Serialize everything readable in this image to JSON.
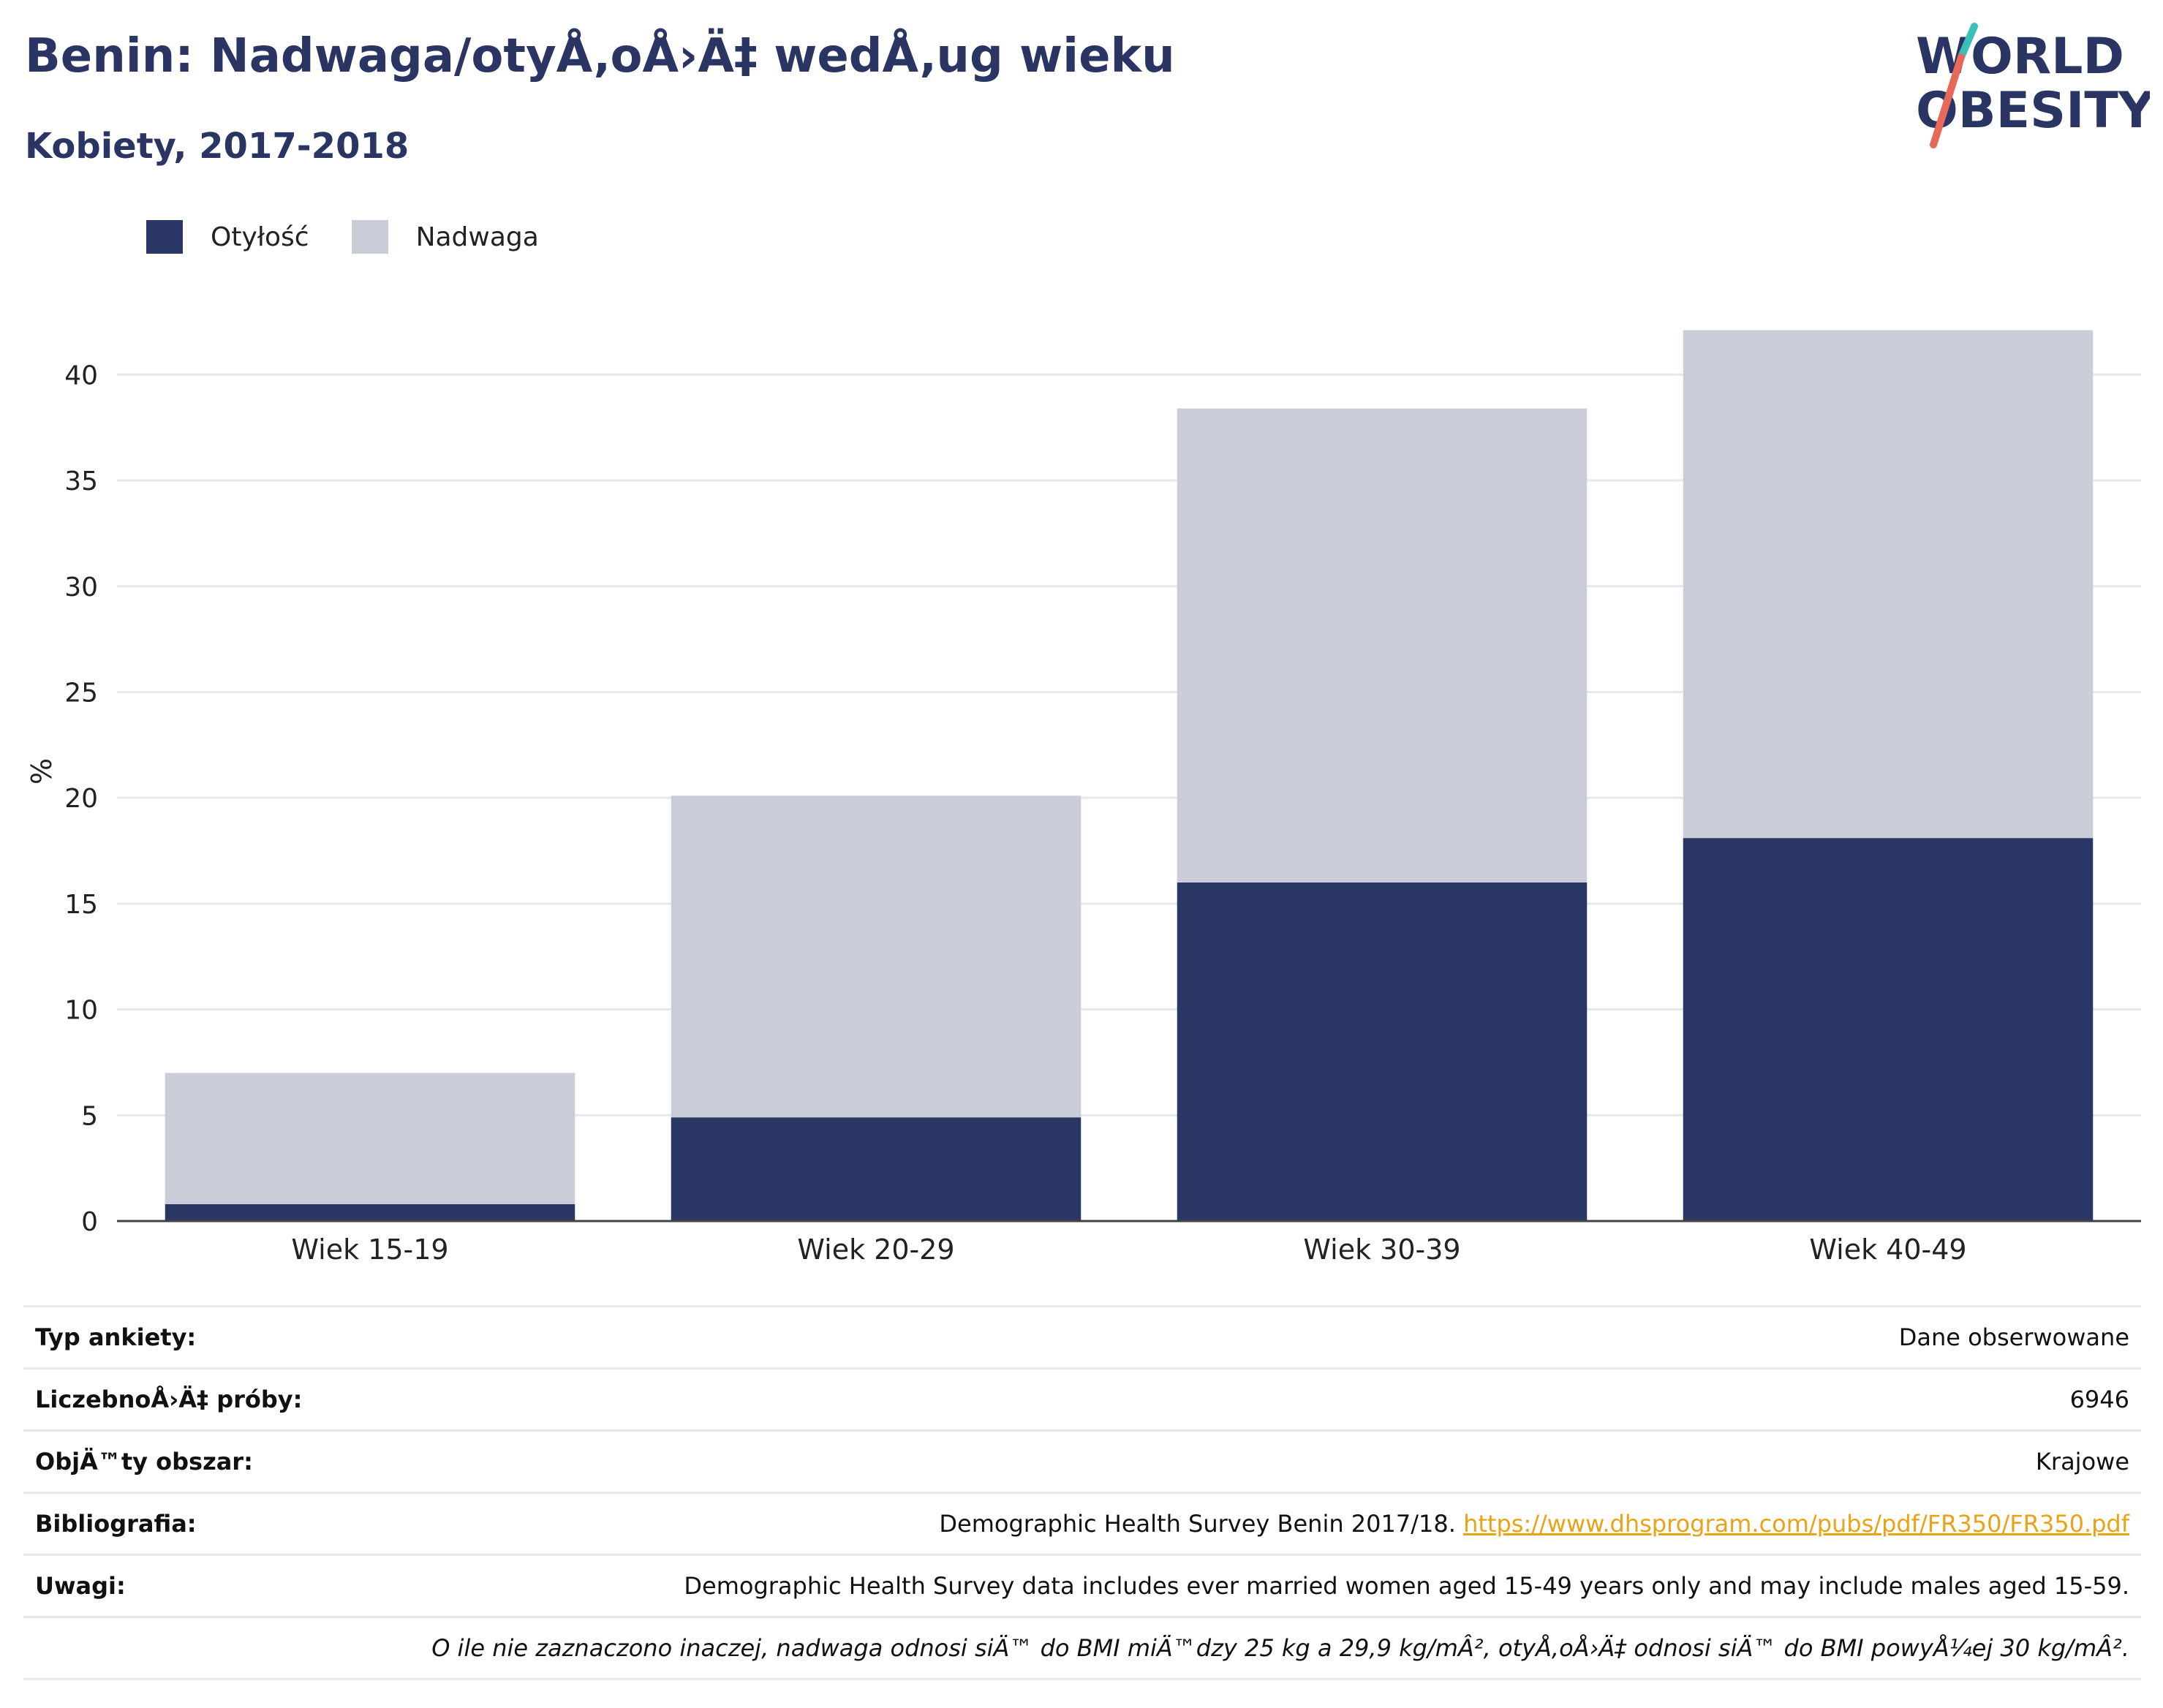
{
  "header": {
    "title": "Benin: Nadwaga/otyÅ‚oÅ›Ä‡ wedÅ‚ug wieku",
    "subtitle": "Kobiety, 2017-2018"
  },
  "logo": {
    "line1": "WORLD",
    "line2": "OBESITY"
  },
  "colors": {
    "obesity": "#2a3664",
    "overweight": "#cacdd8",
    "title": "#2a3564",
    "link": "#e8a317",
    "slash_top": "#3bbfb8",
    "slash_bottom": "#e8685a"
  },
  "legend": [
    {
      "label": "Otyłość",
      "color": "#2a3664"
    },
    {
      "label": "Nadwaga",
      "color": "#cacdd8"
    }
  ],
  "chart_data": {
    "type": "bar",
    "stacked": true,
    "categories": [
      "Wiek 15-19",
      "Wiek 20-29",
      "Wiek 30-39",
      "Wiek 40-49"
    ],
    "series": [
      {
        "name": "Otyłość",
        "values": [
          0.8,
          4.9,
          16.0,
          18.1
        ]
      },
      {
        "name": "Nadwaga",
        "values": [
          6.2,
          15.2,
          22.4,
          24.0
        ]
      }
    ],
    "ylabel": "%",
    "ylim": [
      0,
      42.5
    ],
    "yticks": [
      0,
      5,
      10,
      15,
      20,
      25,
      30,
      35,
      40
    ],
    "grid": true,
    "legend_position": "top-left"
  },
  "meta": [
    {
      "key": "Typ ankiety:",
      "value": "Dane obserwowane"
    },
    {
      "key": "LiczebnoÅ›Ä‡ próby:",
      "value": "6946"
    },
    {
      "key": "ObjÄ™ty obszar:",
      "value": "Krajowe"
    },
    {
      "key": "Bibliografia:",
      "value": "Demographic Health Survey Benin 2017/18.",
      "link": "https://www.dhsprogram.com/pubs/pdf/FR350/FR350.pdf"
    },
    {
      "key": "Uwagi:",
      "value": "Demographic Health Survey data includes ever married women aged 15-49 years only and may include males aged 15-59."
    }
  ],
  "footnote": "O ile nie zaznaczono inaczej, nadwaga odnosi siÄ™ do BMI miÄ™dzy 25 kg a 29,9 kg/mÂ², otyÅ‚oÅ›Ä‡ odnosi siÄ™ do BMI powyÅ¼ej 30 kg/mÂ²."
}
